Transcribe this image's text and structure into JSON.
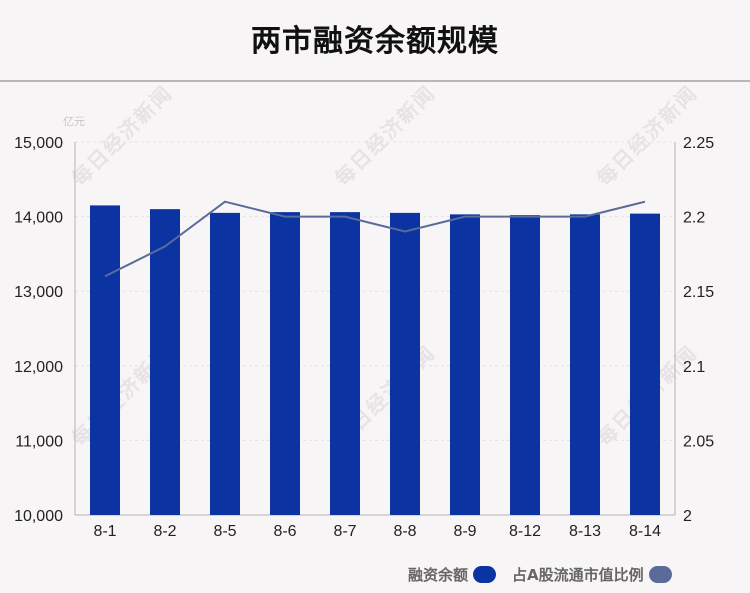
{
  "title": "两市融资余额规模",
  "unit_label": "亿元",
  "watermark": "每日经济新闻",
  "colors": {
    "bar": "#0b33a2",
    "line": "#5a6b9a",
    "axis": "#b5b3b5",
    "grid": "#e4e2e4",
    "text": "#222222"
  },
  "chart_data": {
    "type": "bar",
    "title": "两市融资余额规模",
    "categories": [
      "8-1",
      "8-2",
      "8-5",
      "8-6",
      "8-7",
      "8-8",
      "8-9",
      "8-12",
      "8-13",
      "8-14"
    ],
    "series": [
      {
        "name": "融资余额",
        "axis": "left",
        "type": "bar",
        "values": [
          14150,
          14100,
          14050,
          14060,
          14060,
          14050,
          14030,
          14020,
          14030,
          14040
        ]
      },
      {
        "name": "占A股流通市值比例",
        "axis": "right",
        "type": "line",
        "values": [
          2.16,
          2.18,
          2.21,
          2.2,
          2.2,
          2.19,
          2.2,
          2.2,
          2.2,
          2.21
        ]
      }
    ],
    "y_left": {
      "label": "亿元",
      "lim": [
        10000,
        15000
      ],
      "ticks": [
        "10,000",
        "11,000",
        "12,000",
        "13,000",
        "14,000",
        "15,000"
      ]
    },
    "y_right": {
      "lim": [
        2,
        2.25
      ],
      "ticks": [
        "2",
        "2.05",
        "2.1",
        "2.15",
        "2.2",
        "2.25"
      ]
    },
    "grid": true,
    "legend": "bottom-right"
  }
}
